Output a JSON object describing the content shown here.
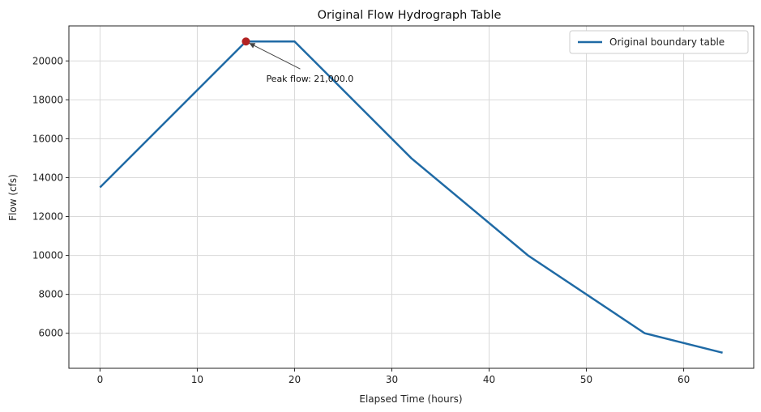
{
  "chart_data": {
    "type": "line",
    "title": "Original Flow Hydrograph Table",
    "xlabel": "Elapsed Time (hours)",
    "ylabel": "Flow (cfs)",
    "xlim": [
      -3.2,
      67.2
    ],
    "ylim": [
      4200,
      21800
    ],
    "xticks": [
      0,
      10,
      20,
      30,
      40,
      50,
      60
    ],
    "yticks": [
      6000,
      8000,
      10000,
      12000,
      14000,
      16000,
      18000,
      20000
    ],
    "grid": true,
    "legend_position": "top-right",
    "series": [
      {
        "name": "Original boundary table",
        "color": "#1f6aa5",
        "x": [
          0,
          15,
          20,
          32,
          44,
          56,
          64
        ],
        "y": [
          13500,
          21000,
          21000,
          15000,
          10000,
          6000,
          5000
        ]
      }
    ],
    "peak": {
      "x": 15,
      "y": 21000,
      "color": "#b22222",
      "label": "Peak flow: 21,000.0"
    }
  }
}
